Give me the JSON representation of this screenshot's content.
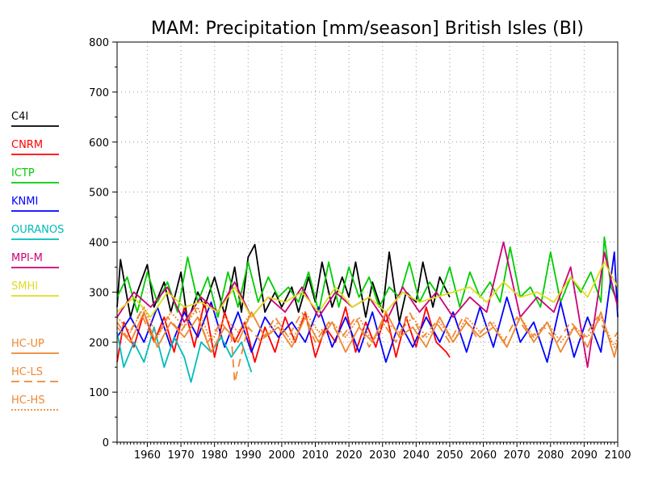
{
  "chart_data": {
    "type": "line",
    "title": "MAM: Precipitation [mm/season] British Isles (BI)",
    "xlabel": "",
    "ylabel": "",
    "xlim": [
      1951,
      2100
    ],
    "ylim": [
      0,
      800
    ],
    "grid": true,
    "legend_placement": "left",
    "x_ticks": [
      "1960",
      "1970",
      "1980",
      "1990",
      "2000",
      "2010",
      "2020",
      "2030",
      "2040",
      "2050",
      "2060",
      "2070",
      "2080",
      "2090",
      "2100"
    ],
    "y_ticks": [
      "0",
      "100",
      "200",
      "300",
      "400",
      "500",
      "600",
      "700",
      "800"
    ],
    "series": [
      {
        "name": "C4I",
        "color": "#000000",
        "dash": "solid",
        "x": [
          1951,
          1952,
          1955,
          1957,
          1960,
          1962,
          1965,
          1967,
          1970,
          1972,
          1975,
          1977,
          1980,
          1983,
          1986,
          1988,
          1990,
          1992,
          1995,
          1998,
          2000,
          2003,
          2005,
          2008,
          2010,
          2012,
          2015,
          2018,
          2020,
          2022,
          2025,
          2027,
          2030,
          2032,
          2035,
          2037,
          2040,
          2042,
          2045,
          2047,
          2050
        ],
        "y": [
          270,
          365,
          250,
          300,
          355,
          270,
          320,
          260,
          340,
          240,
          300,
          270,
          330,
          255,
          350,
          260,
          370,
          395,
          260,
          300,
          270,
          310,
          260,
          330,
          280,
          360,
          270,
          330,
          290,
          360,
          250,
          320,
          260,
          380,
          240,
          300,
          280,
          360,
          270,
          330,
          290
        ]
      },
      {
        "name": "CNRM",
        "color": "#ff0000",
        "dash": "solid",
        "x": [
          1951,
          1953,
          1956,
          1959,
          1962,
          1965,
          1968,
          1971,
          1974,
          1977,
          1980,
          1983,
          1986,
          1989,
          1992,
          1995,
          1998,
          2001,
          2004,
          2007,
          2010,
          2013,
          2016,
          2019,
          2022,
          2025,
          2028,
          2031,
          2034,
          2037,
          2040,
          2043,
          2046,
          2049,
          2050
        ],
        "y": [
          160,
          240,
          190,
          260,
          200,
          250,
          180,
          270,
          190,
          280,
          170,
          260,
          200,
          240,
          160,
          230,
          180,
          250,
          200,
          260,
          170,
          230,
          200,
          270,
          180,
          240,
          190,
          260,
          170,
          250,
          190,
          270,
          200,
          180,
          170
        ]
      },
      {
        "name": "ICTP",
        "color": "#00cc00",
        "dash": "solid",
        "x": [
          1951,
          1954,
          1957,
          1960,
          1963,
          1966,
          1969,
          1972,
          1975,
          1978,
          1981,
          1984,
          1987,
          1990,
          1993,
          1996,
          1999,
          2002,
          2005,
          2008,
          2011,
          2014,
          2017,
          2020,
          2023,
          2026,
          2029,
          2032,
          2035,
          2038,
          2041,
          2044,
          2047,
          2050,
          2053,
          2056,
          2059,
          2062,
          2065,
          2068,
          2071,
          2074,
          2077,
          2080,
          2083,
          2086,
          2089,
          2092,
          2095,
          2096,
          2098,
          2100
        ],
        "y": [
          290,
          330,
          260,
          340,
          280,
          320,
          260,
          370,
          280,
          330,
          250,
          340,
          270,
          360,
          280,
          330,
          290,
          310,
          280,
          340,
          260,
          360,
          270,
          350,
          290,
          330,
          270,
          310,
          290,
          360,
          280,
          320,
          290,
          350,
          270,
          340,
          290,
          320,
          280,
          390,
          290,
          310,
          270,
          380,
          280,
          330,
          300,
          340,
          280,
          410,
          310,
          280
        ]
      },
      {
        "name": "KNMI",
        "color": "#0000ff",
        "dash": "solid",
        "x": [
          1951,
          1955,
          1959,
          1963,
          1967,
          1971,
          1975,
          1979,
          1983,
          1987,
          1991,
          1995,
          1999,
          2003,
          2007,
          2011,
          2015,
          2019,
          2023,
          2027,
          2031,
          2035,
          2039,
          2043,
          2047,
          2051,
          2055,
          2059,
          2063,
          2067,
          2071,
          2075,
          2079,
          2083,
          2087,
          2091,
          2095,
          2099,
          2100
        ],
        "y": [
          210,
          250,
          200,
          270,
          190,
          260,
          210,
          280,
          190,
          260,
          180,
          250,
          210,
          240,
          200,
          270,
          190,
          250,
          180,
          260,
          160,
          240,
          190,
          250,
          200,
          260,
          180,
          270,
          190,
          290,
          200,
          240,
          160,
          280,
          170,
          250,
          180,
          380,
          250
        ]
      },
      {
        "name": "OURANOS",
        "color": "#00bbbb",
        "dash": "solid",
        "x": [
          1951,
          1953,
          1956,
          1959,
          1962,
          1965,
          1968,
          1971,
          1973,
          1976,
          1979,
          1982,
          1985,
          1988,
          1991
        ],
        "y": [
          220,
          150,
          200,
          160,
          230,
          150,
          210,
          170,
          120,
          200,
          180,
          210,
          170,
          200,
          140
        ]
      },
      {
        "name": "MPI-M",
        "color": "#cc0077",
        "dash": "solid",
        "x": [
          1951,
          1956,
          1961,
          1966,
          1971,
          1976,
          1981,
          1986,
          1991,
          1996,
          2001,
          2006,
          2011,
          2016,
          2021,
          2026,
          2031,
          2036,
          2041,
          2046,
          2051,
          2056,
          2061,
          2066,
          2071,
          2076,
          2081,
          2086,
          2091,
          2096,
          2100
        ],
        "y": [
          250,
          300,
          270,
          310,
          240,
          290,
          260,
          320,
          250,
          290,
          260,
          310,
          250,
          300,
          270,
          290,
          240,
          310,
          260,
          300,
          250,
          290,
          260,
          400,
          250,
          290,
          260,
          350,
          150,
          380,
          270
        ]
      },
      {
        "name": "SMHI",
        "color": "#dddd22",
        "dash": "solid",
        "x": [
          1951,
          1956,
          1961,
          1966,
          1971,
          1976,
          1981,
          1986,
          1991,
          1996,
          2001,
          2006,
          2011,
          2016,
          2021,
          2026,
          2031,
          2036,
          2041,
          2046,
          2051,
          2056,
          2061,
          2066,
          2071,
          2076,
          2081,
          2086,
          2091,
          2096,
          2100
        ],
        "y": [
          260,
          290,
          250,
          300,
          270,
          280,
          260,
          310,
          250,
          290,
          280,
          300,
          260,
          310,
          270,
          290,
          260,
          300,
          280,
          290,
          300,
          310,
          280,
          320,
          290,
          300,
          280,
          330,
          290,
          360,
          310
        ]
      },
      {
        "name": "HC-UP",
        "color": "#ee8833",
        "dash": "solid",
        "x": [
          1951,
          1955,
          1959,
          1963,
          1967,
          1971,
          1975,
          1979,
          1983,
          1987,
          1991,
          1995,
          1999,
          2003,
          2007,
          2011,
          2015,
          2019,
          2023,
          2027,
          2031,
          2035,
          2039,
          2043,
          2047,
          2051,
          2055,
          2059,
          2063,
          2067,
          2071,
          2075,
          2079,
          2083,
          2087,
          2091,
          2095,
          2099,
          2100
        ],
        "y": [
          230,
          200,
          260,
          190,
          240,
          210,
          250,
          180,
          230,
          200,
          260,
          210,
          230,
          190,
          250,
          200,
          240,
          180,
          230,
          200,
          260,
          210,
          230,
          190,
          250,
          200,
          240,
          210,
          230,
          190,
          250,
          200,
          240,
          180,
          230,
          190,
          260,
          170,
          200
        ]
      },
      {
        "name": "HC-LS",
        "color": "#ee8833",
        "dash": "long",
        "x": [
          1951,
          1954,
          1958,
          1962,
          1966,
          1970,
          1974,
          1978,
          1982,
          1985,
          1986,
          1990,
          1994,
          1998,
          2002,
          2006,
          2010,
          2014,
          2018,
          2022,
          2026,
          2030,
          2034,
          2038,
          2042,
          2046,
          2050,
          2054,
          2058,
          2062,
          2066,
          2070,
          2074,
          2078,
          2082,
          2086,
          2090,
          2094,
          2098,
          2100
        ],
        "y": [
          240,
          210,
          260,
          200,
          250,
          220,
          270,
          200,
          240,
          210,
          120,
          230,
          200,
          250,
          210,
          260,
          200,
          240,
          210,
          250,
          190,
          240,
          200,
          260,
          210,
          240,
          200,
          250,
          210,
          240,
          200,
          250,
          210,
          230,
          200,
          240,
          210,
          250,
          200,
          220
        ]
      },
      {
        "name": "HC-HS",
        "color": "#ee8833",
        "dash": "dotted",
        "x": [
          1951,
          1955,
          1959,
          1963,
          1967,
          1971,
          1975,
          1979,
          1983,
          1987,
          1991,
          1995,
          1999,
          2003,
          2007,
          2011,
          2015,
          2019,
          2023,
          2027,
          2031,
          2035,
          2039,
          2043,
          2047,
          2051,
          2055,
          2059,
          2063,
          2067,
          2071,
          2075,
          2079,
          2083,
          2087,
          2091,
          2095,
          2099,
          2100
        ],
        "y": [
          250,
          220,
          270,
          210,
          260,
          230,
          270,
          200,
          250,
          220,
          260,
          210,
          240,
          200,
          260,
          220,
          240,
          210,
          250,
          200,
          240,
          220,
          250,
          210,
          240,
          200,
          250,
          220,
          240,
          190,
          250,
          210,
          240,
          200,
          230,
          210,
          250,
          190,
          210
        ]
      }
    ]
  }
}
